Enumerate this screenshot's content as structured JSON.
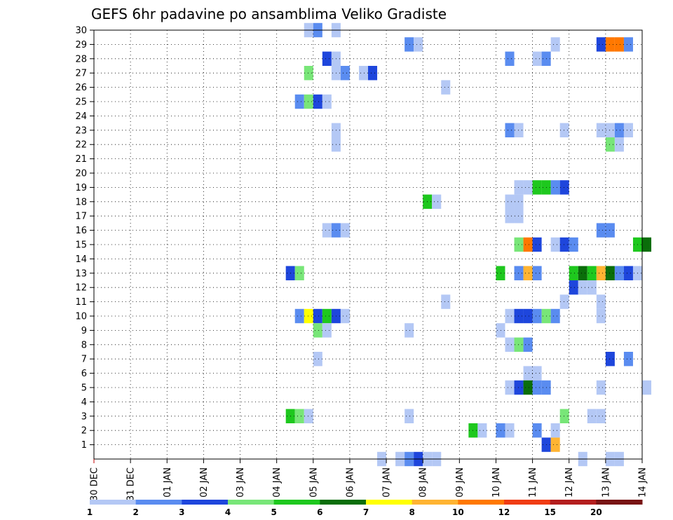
{
  "chart_data": {
    "type": "heatmap",
    "title": "GEFS 6hr padavine po ansamblima Veliko Gradiste",
    "xlabel": "",
    "ylabel": "",
    "x_tick_labels": [
      "30 DEC",
      "31 DEC",
      "01 JAN",
      "02 JAN",
      "03 JAN",
      "04 JAN",
      "05 JAN",
      "06 JAN",
      "07 JAN",
      "08 JAN",
      "09 JAN",
      "10 JAN",
      "11 JAN",
      "12 JAN",
      "13 JAN",
      "14 JAN"
    ],
    "y_tick_labels": [
      "1",
      "2",
      "3",
      "4",
      "5",
      "6",
      "7",
      "8",
      "9",
      "10",
      "11",
      "12",
      "13",
      "14",
      "15",
      "16",
      "17",
      "18",
      "19",
      "20",
      "21",
      "22",
      "23",
      "24",
      "25",
      "26",
      "27",
      "28",
      "29",
      "30"
    ],
    "x_range_days": [
      0,
      15
    ],
    "y_range": [
      0,
      30
    ],
    "grid": true,
    "colorbar": {
      "levels": [
        "1",
        "2",
        "3",
        "4",
        "5",
        "6",
        "7",
        "8",
        "10",
        "12",
        "15",
        "20"
      ],
      "colors": [
        "#b4c8f5",
        "#5a8cf0",
        "#1e46dc",
        "#78e678",
        "#1ec81e",
        "#0a6e0a",
        "#ffff00",
        "#ffb432",
        "#ff7800",
        "#f03c14",
        "#b41e1e",
        "#781414"
      ]
    },
    "cells": [
      [
        0,
        30,
        23,
        1
      ],
      [
        0,
        30,
        24,
        2
      ],
      [
        0,
        30,
        26,
        1
      ],
      [
        0,
        29,
        34,
        2
      ],
      [
        0,
        29,
        35,
        1
      ],
      [
        0,
        29,
        50,
        1
      ],
      [
        0,
        29,
        55,
        3
      ],
      [
        0,
        29,
        56,
        9
      ],
      [
        0,
        29,
        57,
        9
      ],
      [
        0,
        29,
        58,
        2
      ],
      [
        0,
        28,
        25,
        3
      ],
      [
        0,
        28,
        26,
        1
      ],
      [
        0,
        28,
        45,
        2
      ],
      [
        0,
        28,
        48,
        1
      ],
      [
        0,
        28,
        49,
        2
      ],
      [
        0,
        27,
        23,
        4
      ],
      [
        0,
        27,
        26,
        1
      ],
      [
        0,
        27,
        27,
        2
      ],
      [
        0,
        27,
        29,
        1
      ],
      [
        0,
        27,
        30,
        3
      ],
      [
        0,
        26,
        38,
        1
      ],
      [
        0,
        25,
        22,
        2
      ],
      [
        0,
        25,
        23,
        4
      ],
      [
        0,
        25,
        24,
        3
      ],
      [
        0,
        25,
        25,
        1
      ],
      [
        0,
        23,
        26,
        1
      ],
      [
        0,
        23,
        45,
        2
      ],
      [
        0,
        23,
        46,
        1
      ],
      [
        0,
        23,
        51,
        1
      ],
      [
        0,
        23,
        55,
        1
      ],
      [
        0,
        23,
        56,
        1
      ],
      [
        0,
        23,
        57,
        2
      ],
      [
        0,
        23,
        58,
        1
      ],
      [
        0,
        22,
        26,
        1
      ],
      [
        0,
        22,
        56,
        4
      ],
      [
        0,
        22,
        57,
        1
      ],
      [
        0,
        19,
        46,
        1
      ],
      [
        0,
        19,
        47,
        1
      ],
      [
        0,
        19,
        48,
        5
      ],
      [
        0,
        19,
        49,
        5
      ],
      [
        0,
        19,
        50,
        2
      ],
      [
        0,
        19,
        51,
        3
      ],
      [
        0,
        18,
        36,
        5
      ],
      [
        0,
        18,
        37,
        1
      ],
      [
        0,
        18,
        45,
        1
      ],
      [
        0,
        18,
        46,
        1
      ],
      [
        0,
        17,
        45,
        1
      ],
      [
        0,
        17,
        46,
        1
      ],
      [
        0,
        16,
        25,
        1
      ],
      [
        0,
        16,
        26,
        2
      ],
      [
        0,
        16,
        27,
        1
      ],
      [
        0,
        16,
        55,
        2
      ],
      [
        0,
        16,
        56,
        2
      ],
      [
        0,
        15,
        46,
        4
      ],
      [
        0,
        15,
        47,
        9
      ],
      [
        0,
        15,
        48,
        3
      ],
      [
        0,
        15,
        50,
        1
      ],
      [
        0,
        15,
        51,
        3
      ],
      [
        0,
        15,
        52,
        2
      ],
      [
        0,
        15,
        59,
        5
      ],
      [
        0,
        15,
        60,
        6
      ],
      [
        0,
        13,
        21,
        3
      ],
      [
        0,
        13,
        22,
        4
      ],
      [
        0,
        13,
        44,
        5
      ],
      [
        0,
        13,
        46,
        2
      ],
      [
        0,
        13,
        47,
        8
      ],
      [
        0,
        13,
        48,
        2
      ],
      [
        0,
        13,
        52,
        5
      ],
      [
        0,
        13,
        53,
        6
      ],
      [
        0,
        13,
        54,
        5
      ],
      [
        0,
        13,
        55,
        8
      ],
      [
        0,
        13,
        56,
        6
      ],
      [
        0,
        13,
        57,
        2
      ],
      [
        0,
        13,
        58,
        3
      ],
      [
        0,
        13,
        59,
        1
      ],
      [
        0,
        12,
        52,
        3
      ],
      [
        0,
        12,
        53,
        1
      ],
      [
        0,
        12,
        54,
        1
      ],
      [
        0,
        11,
        38,
        1
      ],
      [
        0,
        11,
        51,
        1
      ],
      [
        0,
        11,
        55,
        1
      ],
      [
        0,
        10,
        22,
        2
      ],
      [
        0,
        10,
        23,
        7
      ],
      [
        0,
        10,
        24,
        3
      ],
      [
        0,
        10,
        25,
        5
      ],
      [
        0,
        10,
        26,
        3
      ],
      [
        0,
        10,
        27,
        1
      ],
      [
        0,
        10,
        45,
        1
      ],
      [
        0,
        10,
        46,
        3
      ],
      [
        0,
        10,
        47,
        3
      ],
      [
        0,
        10,
        48,
        2
      ],
      [
        0,
        10,
        49,
        4
      ],
      [
        0,
        10,
        50,
        2
      ],
      [
        0,
        10,
        55,
        1
      ],
      [
        0,
        9,
        24,
        4
      ],
      [
        0,
        9,
        25,
        1
      ],
      [
        0,
        9,
        34,
        1
      ],
      [
        0,
        9,
        44,
        1
      ],
      [
        0,
        8,
        45,
        1
      ],
      [
        0,
        8,
        46,
        4
      ],
      [
        0,
        8,
        47,
        2
      ],
      [
        0,
        7,
        24,
        1
      ],
      [
        0,
        7,
        56,
        3
      ],
      [
        0,
        7,
        58,
        2
      ],
      [
        0,
        6,
        47,
        1
      ],
      [
        0,
        6,
        48,
        1
      ],
      [
        0,
        5,
        45,
        1
      ],
      [
        0,
        5,
        46,
        3
      ],
      [
        0,
        5,
        47,
        6
      ],
      [
        0,
        5,
        48,
        2
      ],
      [
        0,
        5,
        49,
        2
      ],
      [
        0,
        5,
        55,
        1
      ],
      [
        0,
        5,
        60,
        1
      ],
      [
        0,
        3,
        21,
        5
      ],
      [
        0,
        3,
        22,
        4
      ],
      [
        0,
        3,
        23,
        1
      ],
      [
        0,
        3,
        34,
        1
      ],
      [
        0,
        3,
        51,
        4
      ],
      [
        0,
        3,
        54,
        1
      ],
      [
        0,
        3,
        55,
        1
      ],
      [
        0,
        2,
        41,
        5
      ],
      [
        0,
        2,
        42,
        1
      ],
      [
        0,
        2,
        44,
        2
      ],
      [
        0,
        2,
        45,
        1
      ],
      [
        0,
        2,
        48,
        2
      ],
      [
        0,
        2,
        50,
        1
      ],
      [
        0,
        1,
        49,
        3
      ],
      [
        0,
        1,
        50,
        8
      ],
      [
        0,
        0,
        31,
        1
      ],
      [
        0,
        0,
        33,
        1
      ],
      [
        0,
        0,
        34,
        2
      ],
      [
        0,
        0,
        35,
        3
      ],
      [
        0,
        0,
        36,
        1
      ],
      [
        0,
        0,
        37,
        1
      ],
      [
        0,
        0,
        53,
        1
      ],
      [
        0,
        0,
        56,
        1
      ],
      [
        0,
        0,
        57,
        1
      ]
    ]
  }
}
